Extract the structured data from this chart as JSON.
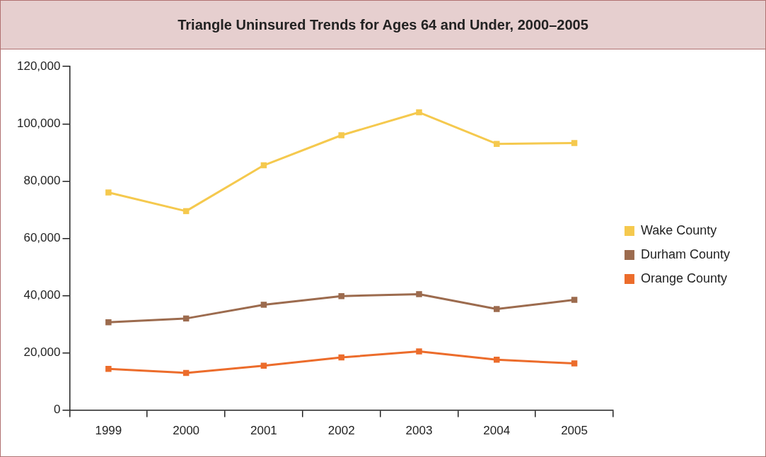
{
  "chart_data": {
    "type": "line",
    "title": "Triangle Uninsured Trends for Ages 64 and Under, 2000–2005",
    "categories": [
      "1999",
      "2000",
      "2001",
      "2002",
      "2003",
      "2004",
      "2005"
    ],
    "series": [
      {
        "name": "Wake County",
        "color": "#f5c94e",
        "values": [
          76000,
          69500,
          85500,
          96000,
          104000,
          93000,
          93300
        ]
      },
      {
        "name": "Durham County",
        "color": "#9c6b4e",
        "values": [
          30700,
          32000,
          36800,
          39800,
          40500,
          35300,
          38500
        ]
      },
      {
        "name": "Orange County",
        "color": "#ec6c2b",
        "values": [
          14400,
          13000,
          15500,
          18400,
          20500,
          17600,
          16300
        ]
      }
    ],
    "ylim": [
      0,
      120000
    ],
    "yticks": [
      0,
      {
        "value": 20000,
        "label": "20,000"
      },
      {
        "value": 40000,
        "label": "40,000"
      },
      {
        "value": 60000,
        "label": "60,000"
      },
      {
        "value": 80000,
        "label": "80,000"
      },
      {
        "value": 100000,
        "label": "100,000"
      },
      {
        "value": 120000,
        "label": "120,000"
      }
    ],
    "grid": false,
    "legend": "right",
    "marker": "square",
    "line_style": "solid"
  }
}
